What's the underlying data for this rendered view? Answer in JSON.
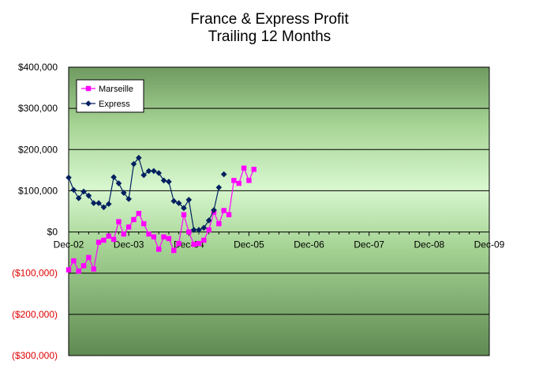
{
  "chart_data": {
    "type": "line",
    "title": "France & Express Profit",
    "subtitle": "Trailing 12 Months",
    "xlabel": "",
    "ylabel": "",
    "ylim": [
      -300000,
      400000
    ],
    "y_ticks": [
      400000,
      300000,
      200000,
      100000,
      0,
      -100000,
      -200000,
      -300000
    ],
    "y_tick_labels": [
      "$400,000",
      "$300,000",
      "$200,000",
      "$100,000",
      "$0",
      "($100,000)",
      "($200,000)",
      "($300,000)"
    ],
    "x_ticks": [
      0,
      12,
      24,
      36,
      48,
      60,
      72,
      84
    ],
    "x_tick_labels": [
      "Dec-02",
      "Dec-03",
      "Dec-04",
      "Dec-05",
      "Dec-06",
      "Dec-07",
      "Dec-08",
      "Dec-09"
    ],
    "xlim": [
      0,
      84
    ],
    "grid": true,
    "legend_position": "top-left",
    "series": [
      {
        "name": "Marseille",
        "color": "#ff00ff",
        "marker": "square",
        "x": [
          0,
          1,
          2,
          3,
          4,
          5,
          6,
          7,
          8,
          9,
          10,
          11,
          12,
          13,
          14,
          15,
          16,
          17,
          18,
          19,
          20,
          21,
          22,
          23,
          24,
          25,
          26,
          27,
          28,
          29,
          30,
          31,
          32,
          33
        ],
        "values": [
          -92000,
          -70000,
          -95000,
          -82000,
          -62000,
          -90000,
          -25000,
          -20000,
          -10000,
          -18000,
          25000,
          -5000,
          12000,
          30000,
          45000,
          20000,
          -5000,
          -12000,
          -42000,
          -12000,
          -16000,
          -45000,
          -28000,
          42000,
          0,
          -30000,
          -28000,
          -20000,
          5000,
          48000,
          20000,
          52000,
          42000,
          125000
        ],
        "x2": [
          34,
          35,
          36,
          37
        ],
        "values2": [
          118000,
          155000,
          125000,
          152000
        ]
      },
      {
        "name": "Express",
        "color": "#002060",
        "marker": "diamond",
        "x": [
          0,
          1,
          2,
          3,
          4,
          5,
          6,
          7,
          8,
          9,
          10,
          11,
          12,
          13,
          14,
          15,
          16,
          17,
          18,
          19,
          20,
          21,
          22,
          23,
          24,
          25,
          26,
          27,
          28,
          29,
          30
        ],
        "values": [
          132000,
          102000,
          82000,
          98000,
          88000,
          70000,
          70000,
          60000,
          68000,
          133000,
          118000,
          95000,
          80000,
          165000,
          180000,
          138000,
          148000,
          148000,
          143000,
          125000,
          122000,
          75000,
          70000,
          58000,
          78000,
          5000,
          5000,
          10000,
          28000,
          53000,
          108000
        ],
        "x2": [
          31
        ],
        "values2": [
          140000
        ]
      }
    ]
  }
}
